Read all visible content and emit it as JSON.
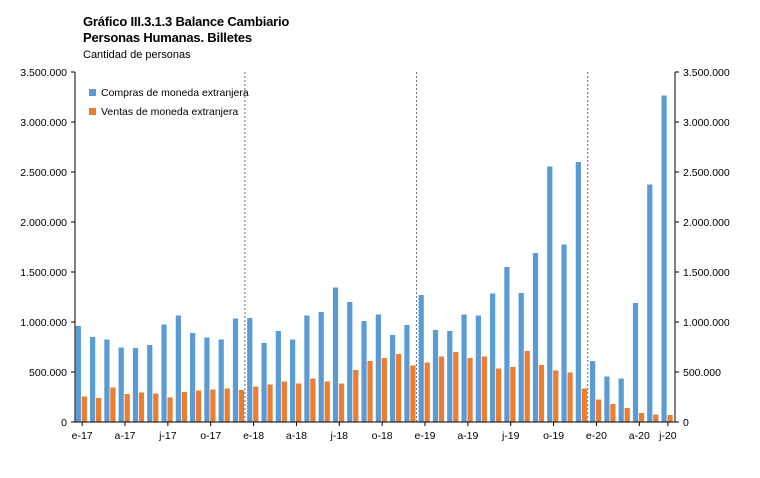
{
  "chart_data": {
    "type": "bar",
    "title": "Gráfico III.3.1.3 Balance Cambiario",
    "subtitle": "Personas Humanas. Billetes",
    "ylabel": "Cantidad de personas",
    "xlabel": "",
    "ylim": [
      0,
      3500000
    ],
    "yticks": [
      0,
      500000,
      1000000,
      1500000,
      2000000,
      2500000,
      3000000,
      3500000
    ],
    "ytick_labels": [
      "0",
      "500.000",
      "1.000.000",
      "1.500.000",
      "2.000.000",
      "2.500.000",
      "3.000.000",
      "3.500.000"
    ],
    "xtick_labels": [
      {
        "index": 0,
        "label": "e-17"
      },
      {
        "index": 3,
        "label": "a-17"
      },
      {
        "index": 6,
        "label": "j-17"
      },
      {
        "index": 9,
        "label": "o-17"
      },
      {
        "index": 12,
        "label": "e-18"
      },
      {
        "index": 15,
        "label": "a-18"
      },
      {
        "index": 18,
        "label": "j-18"
      },
      {
        "index": 21,
        "label": "o-18"
      },
      {
        "index": 24,
        "label": "e-19"
      },
      {
        "index": 27,
        "label": "a-19"
      },
      {
        "index": 30,
        "label": "j-19"
      },
      {
        "index": 33,
        "label": "o-19"
      },
      {
        "index": 36,
        "label": "e-20"
      },
      {
        "index": 39,
        "label": "a-20"
      },
      {
        "index": 41,
        "label": "j-20"
      }
    ],
    "year_separators_before_index": [
      12,
      24,
      36
    ],
    "legend_position": "top-left",
    "series": [
      {
        "name": "Compras de moneda extranjera",
        "color": "#5b9bd5",
        "values": [
          960000,
          850000,
          825000,
          745000,
          740000,
          770000,
          975000,
          1065000,
          890000,
          845000,
          825000,
          1035000,
          1040000,
          790000,
          910000,
          825000,
          1065000,
          1100000,
          1345000,
          1200000,
          1010000,
          1075000,
          870000,
          970000,
          1270000,
          920000,
          910000,
          1075000,
          1065000,
          1285000,
          1550000,
          1290000,
          1690000,
          2555000,
          1775000,
          2600000,
          610000,
          455000,
          435000,
          1190000,
          2375000,
          3265000
        ]
      },
      {
        "name": "Ventas de moneda extranjera",
        "color": "#ed7d31",
        "values": [
          255000,
          240000,
          345000,
          280000,
          295000,
          285000,
          245000,
          300000,
          315000,
          325000,
          335000,
          320000,
          355000,
          375000,
          405000,
          385000,
          435000,
          405000,
          385000,
          520000,
          610000,
          640000,
          680000,
          565000,
          595000,
          655000,
          700000,
          640000,
          655000,
          535000,
          550000,
          710000,
          570000,
          515000,
          495000,
          335000,
          225000,
          180000,
          140000,
          90000,
          75000,
          70000
        ]
      }
    ]
  }
}
